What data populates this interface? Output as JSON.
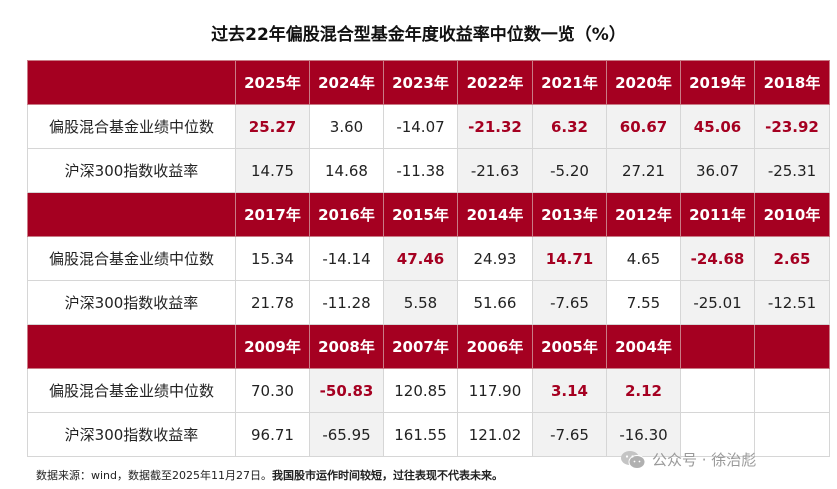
{
  "title": "过去22年偏股混合型基金年度收益率中位数一览（%）",
  "row_labels": {
    "fund": "偏股混合基金业绩中位数",
    "index": "沪深300指数收益率"
  },
  "blocks": [
    {
      "years": [
        "2025年",
        "2024年",
        "2023年",
        "2022年",
        "2021年",
        "2020年",
        "2019年",
        "2018年"
      ],
      "fund": [
        "25.27",
        "3.60",
        "-14.07",
        "-21.32",
        "6.32",
        "60.67",
        "45.06",
        "-23.92"
      ],
      "index": [
        "14.75",
        "14.68",
        "-11.38",
        "-21.63",
        "-5.20",
        "27.21",
        "36.07",
        "-25.31"
      ],
      "highlight": [
        true,
        false,
        false,
        true,
        true,
        true,
        true,
        true
      ]
    },
    {
      "years": [
        "2017年",
        "2016年",
        "2015年",
        "2014年",
        "2013年",
        "2012年",
        "2011年",
        "2010年"
      ],
      "fund": [
        "15.34",
        "-14.14",
        "47.46",
        "24.93",
        "14.71",
        "4.65",
        "-24.68",
        "2.65"
      ],
      "index": [
        "21.78",
        "-11.28",
        "5.58",
        "51.66",
        "-7.65",
        "7.55",
        "-25.01",
        "-12.51"
      ],
      "highlight": [
        false,
        false,
        true,
        false,
        true,
        false,
        true,
        true
      ]
    },
    {
      "years": [
        "2009年",
        "2008年",
        "2007年",
        "2006年",
        "2005年",
        "2004年",
        "",
        ""
      ],
      "fund": [
        "70.30",
        "-50.83",
        "120.85",
        "117.90",
        "3.14",
        "2.12",
        "",
        ""
      ],
      "index": [
        "96.71",
        "-65.95",
        "161.55",
        "121.02",
        "-7.65",
        "-16.30",
        "",
        ""
      ],
      "highlight": [
        false,
        true,
        false,
        false,
        true,
        true,
        false,
        false
      ]
    }
  ],
  "footer": {
    "source": "数据来源：wind，数据截至2025年11月27日。",
    "note": "我国股市运作时间较短，过往表现不代表未来。"
  },
  "watermark": {
    "icon": "wechat-icon",
    "text": "公众号 · 徐治彪"
  }
}
